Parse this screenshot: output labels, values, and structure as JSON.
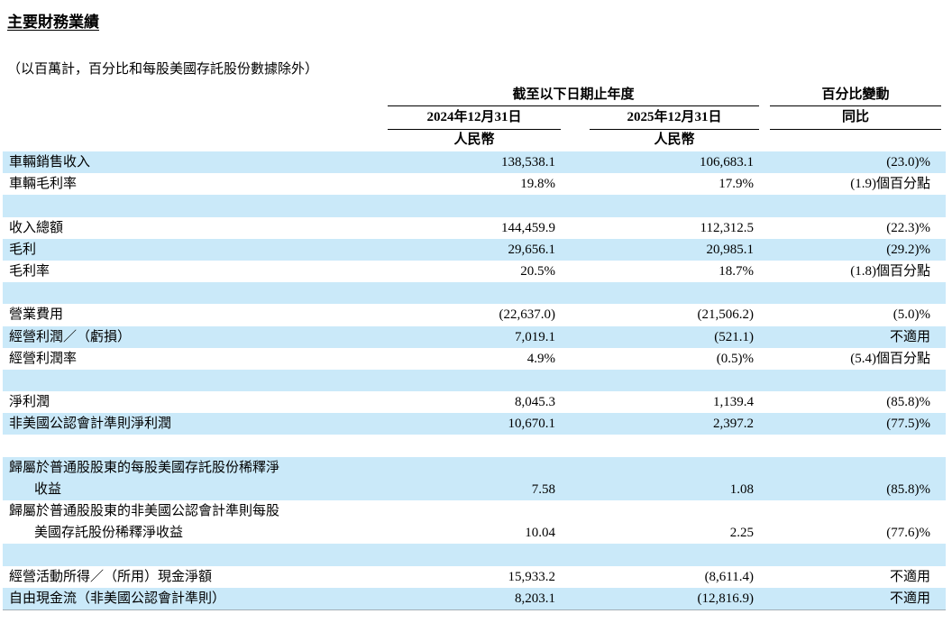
{
  "page": {
    "title": "主要財務業績",
    "subtitle": "（以百萬計，百分比和每股美國存託股份數據除外）"
  },
  "table": {
    "header": {
      "period_group": "截至以下日期止年度",
      "change_group": "百分比變動",
      "col_2024": "2024年12月31日",
      "col_2025": "2025年12月31日",
      "col_change": "同比",
      "currency_2024": "人民幣",
      "currency_2025": "人民幣"
    },
    "rows": [
      {
        "label": "車輛銷售收入",
        "v2024": "138,538.1",
        "v2025": "106,683.1",
        "change": "(23.0)%",
        "bg": "blue"
      },
      {
        "label": "車輛毛利率",
        "v2024": "19.8%",
        "v2025": "17.9%",
        "change": "(1.9)個百分點",
        "bg": "white"
      },
      {
        "spacer": true,
        "bg": "blue"
      },
      {
        "label": "收入總額",
        "v2024": "144,459.9",
        "v2025": "112,312.5",
        "change": "(22.3)%",
        "bg": "white"
      },
      {
        "label": "毛利",
        "v2024": "29,656.1",
        "v2025": "20,985.1",
        "change": "(29.2)%",
        "bg": "blue"
      },
      {
        "label": "毛利率",
        "v2024": "20.5%",
        "v2025": "18.7%",
        "change": "(1.8)個百分點",
        "bg": "white"
      },
      {
        "spacer": true,
        "bg": "blue"
      },
      {
        "label": "營業費用",
        "v2024": "(22,637.0)",
        "v2025": "(21,506.2)",
        "change": "(5.0)%",
        "bg": "white"
      },
      {
        "label": "經營利潤／（虧損）",
        "v2024": "7,019.1",
        "v2025": "(521.1)",
        "change": "不適用",
        "bg": "blue"
      },
      {
        "label": "經營利潤率",
        "v2024": "4.9%",
        "v2025": "(0.5)%",
        "change": "(5.4)個百分點",
        "bg": "white"
      },
      {
        "spacer": true,
        "bg": "blue"
      },
      {
        "label": "淨利潤",
        "v2024": "8,045.3",
        "v2025": "1,139.4",
        "change": "(85.8)%",
        "bg": "white"
      },
      {
        "label": "非美國公認會計準則淨利潤",
        "v2024": "10,670.1",
        "v2025": "2,397.2",
        "change": "(77.5)%",
        "bg": "blue"
      },
      {
        "spacer": true,
        "bg": "white"
      },
      {
        "label": "歸屬於普通股股東的每股美國存託股份稀釋淨",
        "label2": "收益",
        "v2024": "7.58",
        "v2025": "1.08",
        "change": "(85.8)%",
        "bg": "blue"
      },
      {
        "label": "歸屬於普通股股東的非美國公認會計準則每股",
        "label2": "美國存託股份稀釋淨收益",
        "v2024": "10.04",
        "v2025": "2.25",
        "change": "(77.6)%",
        "bg": "white"
      },
      {
        "spacer": true,
        "bg": "blue"
      },
      {
        "label": "經營活動所得／（所用）現金淨額",
        "v2024": "15,933.2",
        "v2025": "(8,611.4)",
        "change": "不適用",
        "bg": "white"
      },
      {
        "label": "自由現金流（非美國公認會計準則）",
        "v2024": "8,203.1",
        "v2025": "(12,816.9)",
        "change": "不適用",
        "bg": "blue"
      }
    ]
  }
}
